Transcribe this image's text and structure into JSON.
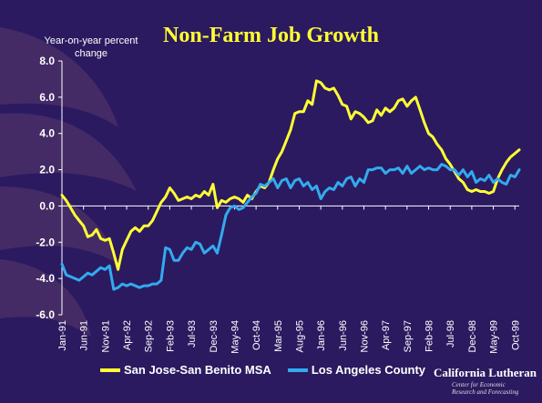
{
  "chart_data": {
    "type": "line",
    "title": "Non-Farm Job Growth",
    "ylabel": "Year-on-year percent change",
    "xlabel": "",
    "ylim": [
      -6,
      8
    ],
    "yticks": [
      "8.0",
      "6.0",
      "4.0",
      "2.0",
      "0.0",
      "-2.0",
      "-4.0",
      "-6.0"
    ],
    "ytick_values": [
      8,
      6,
      4,
      2,
      0,
      -2,
      -4,
      -6
    ],
    "x_tick_labels": [
      "Jan-91",
      "Jun-91",
      "Nov-91",
      "Apr-92",
      "Sep-92",
      "Feb-93",
      "Jul-93",
      "Dec-93",
      "May-94",
      "Oct-94",
      "Mar-95",
      "Aug-95",
      "Jan-96",
      "Jun-96",
      "Nov-96",
      "Apr-97",
      "Sep-97",
      "Feb-98",
      "Jul-98",
      "Dec-98",
      "May-99",
      "Oct-99"
    ],
    "x_tick_months": [
      0,
      5,
      10,
      15,
      20,
      25,
      30,
      35,
      40,
      45,
      50,
      55,
      60,
      65,
      70,
      75,
      80,
      85,
      90,
      95,
      100,
      105
    ],
    "x_start": "Jan-91",
    "grid": false,
    "legend_position": "bottom",
    "series": [
      {
        "name": "San Jose-San Benito MSA",
        "color": "#ffff33",
        "points": [
          [
            0,
            0.6
          ],
          [
            1,
            0.3
          ],
          [
            2,
            -0.1
          ],
          [
            3,
            -0.5
          ],
          [
            4,
            -0.8
          ],
          [
            5,
            -1.1
          ],
          [
            6,
            -1.7
          ],
          [
            7,
            -1.6
          ],
          [
            8,
            -1.3
          ],
          [
            9,
            -1.8
          ],
          [
            10,
            -1.9
          ],
          [
            11,
            -1.8
          ],
          [
            12,
            -2.6
          ],
          [
            13,
            -3.5
          ],
          [
            14,
            -2.4
          ],
          [
            15,
            -1.9
          ],
          [
            16,
            -1.4
          ],
          [
            17,
            -1.2
          ],
          [
            18,
            -1.4
          ],
          [
            19,
            -1.1
          ],
          [
            20,
            -1.1
          ],
          [
            21,
            -0.8
          ],
          [
            22,
            -0.3
          ],
          [
            23,
            0.2
          ],
          [
            24,
            0.5
          ],
          [
            25,
            1.0
          ],
          [
            26,
            0.7
          ],
          [
            27,
            0.3
          ],
          [
            28,
            0.4
          ],
          [
            29,
            0.5
          ],
          [
            30,
            0.4
          ],
          [
            31,
            0.6
          ],
          [
            32,
            0.5
          ],
          [
            33,
            0.8
          ],
          [
            34,
            0.6
          ],
          [
            35,
            1.2
          ],
          [
            36,
            -0.1
          ],
          [
            37,
            0.3
          ],
          [
            38,
            0.2
          ],
          [
            39,
            0.4
          ],
          [
            40,
            0.5
          ],
          [
            41,
            0.4
          ],
          [
            42,
            0.2
          ],
          [
            43,
            0.6
          ],
          [
            44,
            0.4
          ],
          [
            45,
            0.8
          ],
          [
            46,
            1.1
          ],
          [
            47,
            1.0
          ],
          [
            48,
            1.3
          ],
          [
            49,
            2.0
          ],
          [
            50,
            2.6
          ],
          [
            51,
            3.0
          ],
          [
            52,
            3.6
          ],
          [
            53,
            4.2
          ],
          [
            54,
            5.1
          ],
          [
            55,
            5.2
          ],
          [
            56,
            5.2
          ],
          [
            57,
            5.8
          ],
          [
            58,
            5.6
          ],
          [
            59,
            6.9
          ],
          [
            60,
            6.8
          ],
          [
            61,
            6.5
          ],
          [
            62,
            6.4
          ],
          [
            63,
            6.5
          ],
          [
            64,
            6.1
          ],
          [
            65,
            5.6
          ],
          [
            66,
            5.5
          ],
          [
            67,
            4.8
          ],
          [
            68,
            5.2
          ],
          [
            69,
            5.1
          ],
          [
            70,
            4.9
          ],
          [
            71,
            4.6
          ],
          [
            72,
            4.7
          ],
          [
            73,
            5.3
          ],
          [
            74,
            5.0
          ],
          [
            75,
            5.4
          ],
          [
            76,
            5.2
          ],
          [
            77,
            5.4
          ],
          [
            78,
            5.8
          ],
          [
            79,
            5.9
          ],
          [
            80,
            5.5
          ],
          [
            81,
            5.8
          ],
          [
            82,
            6.0
          ],
          [
            83,
            5.3
          ],
          [
            84,
            4.6
          ],
          [
            85,
            4.0
          ],
          [
            86,
            3.8
          ],
          [
            87,
            3.4
          ],
          [
            88,
            3.1
          ],
          [
            89,
            2.6
          ],
          [
            90,
            2.3
          ],
          [
            91,
            1.9
          ],
          [
            92,
            1.5
          ],
          [
            93,
            1.3
          ],
          [
            94,
            0.9
          ],
          [
            95,
            0.8
          ],
          [
            96,
            0.9
          ],
          [
            97,
            0.8
          ],
          [
            98,
            0.8
          ],
          [
            99,
            0.7
          ],
          [
            100,
            0.8
          ],
          [
            101,
            1.5
          ],
          [
            102,
            2.0
          ],
          [
            103,
            2.4
          ],
          [
            104,
            2.7
          ],
          [
            105,
            2.9
          ],
          [
            106,
            3.1
          ]
        ]
      },
      {
        "name": "Los Angeles County",
        "color": "#33aaee",
        "points": [
          [
            0,
            -3.2
          ],
          [
            1,
            -3.8
          ],
          [
            2,
            -3.9
          ],
          [
            3,
            -4.0
          ],
          [
            4,
            -4.1
          ],
          [
            5,
            -3.9
          ],
          [
            6,
            -3.7
          ],
          [
            7,
            -3.8
          ],
          [
            8,
            -3.6
          ],
          [
            9,
            -3.4
          ],
          [
            10,
            -3.5
          ],
          [
            11,
            -3.3
          ],
          [
            12,
            -4.6
          ],
          [
            13,
            -4.5
          ],
          [
            14,
            -4.3
          ],
          [
            15,
            -4.4
          ],
          [
            16,
            -4.3
          ],
          [
            17,
            -4.4
          ],
          [
            18,
            -4.5
          ],
          [
            19,
            -4.4
          ],
          [
            20,
            -4.4
          ],
          [
            21,
            -4.3
          ],
          [
            22,
            -4.3
          ],
          [
            23,
            -4.1
          ],
          [
            24,
            -2.3
          ],
          [
            25,
            -2.4
          ],
          [
            26,
            -3.0
          ],
          [
            27,
            -3.0
          ],
          [
            28,
            -2.6
          ],
          [
            29,
            -2.3
          ],
          [
            30,
            -2.4
          ],
          [
            31,
            -2.0
          ],
          [
            32,
            -2.1
          ],
          [
            33,
            -2.6
          ],
          [
            34,
            -2.4
          ],
          [
            35,
            -2.2
          ],
          [
            36,
            -2.6
          ],
          [
            37,
            -1.6
          ],
          [
            38,
            -0.5
          ],
          [
            39,
            -0.1
          ],
          [
            40,
            0.0
          ],
          [
            41,
            -0.2
          ],
          [
            42,
            -0.1
          ],
          [
            43,
            0.2
          ],
          [
            44,
            0.5
          ],
          [
            45,
            0.7
          ],
          [
            46,
            1.2
          ],
          [
            47,
            1.1
          ],
          [
            48,
            1.3
          ],
          [
            49,
            1.5
          ],
          [
            50,
            1.0
          ],
          [
            51,
            1.4
          ],
          [
            52,
            1.5
          ],
          [
            53,
            1.0
          ],
          [
            54,
            1.4
          ],
          [
            55,
            1.5
          ],
          [
            56,
            1.1
          ],
          [
            57,
            1.3
          ],
          [
            58,
            0.9
          ],
          [
            59,
            1.1
          ],
          [
            60,
            0.4
          ],
          [
            61,
            0.8
          ],
          [
            62,
            1.0
          ],
          [
            63,
            0.9
          ],
          [
            64,
            1.3
          ],
          [
            65,
            1.1
          ],
          [
            66,
            1.5
          ],
          [
            67,
            1.6
          ],
          [
            68,
            1.1
          ],
          [
            69,
            1.5
          ],
          [
            70,
            1.3
          ],
          [
            71,
            2.0
          ],
          [
            72,
            2.0
          ],
          [
            73,
            2.1
          ],
          [
            74,
            2.1
          ],
          [
            75,
            1.8
          ],
          [
            76,
            2.0
          ],
          [
            77,
            2.0
          ],
          [
            78,
            2.1
          ],
          [
            79,
            1.8
          ],
          [
            80,
            2.2
          ],
          [
            81,
            1.8
          ],
          [
            82,
            2.0
          ],
          [
            83,
            2.2
          ],
          [
            84,
            2.0
          ],
          [
            85,
            2.1
          ],
          [
            86,
            2.0
          ],
          [
            87,
            2.0
          ],
          [
            88,
            2.3
          ],
          [
            89,
            2.2
          ],
          [
            90,
            2.0
          ],
          [
            91,
            2.0
          ],
          [
            92,
            1.7
          ],
          [
            93,
            2.0
          ],
          [
            94,
            1.6
          ],
          [
            95,
            1.9
          ],
          [
            96,
            1.3
          ],
          [
            97,
            1.5
          ],
          [
            98,
            1.4
          ],
          [
            99,
            1.7
          ],
          [
            100,
            1.3
          ],
          [
            101,
            1.5
          ],
          [
            102,
            1.3
          ],
          [
            103,
            1.2
          ],
          [
            104,
            1.7
          ],
          [
            105,
            1.6
          ],
          [
            106,
            2.0
          ]
        ]
      }
    ]
  },
  "logo": {
    "name": "California Lutheran",
    "sub1": "Center for Economic",
    "sub2": "Research and Forecasting"
  }
}
